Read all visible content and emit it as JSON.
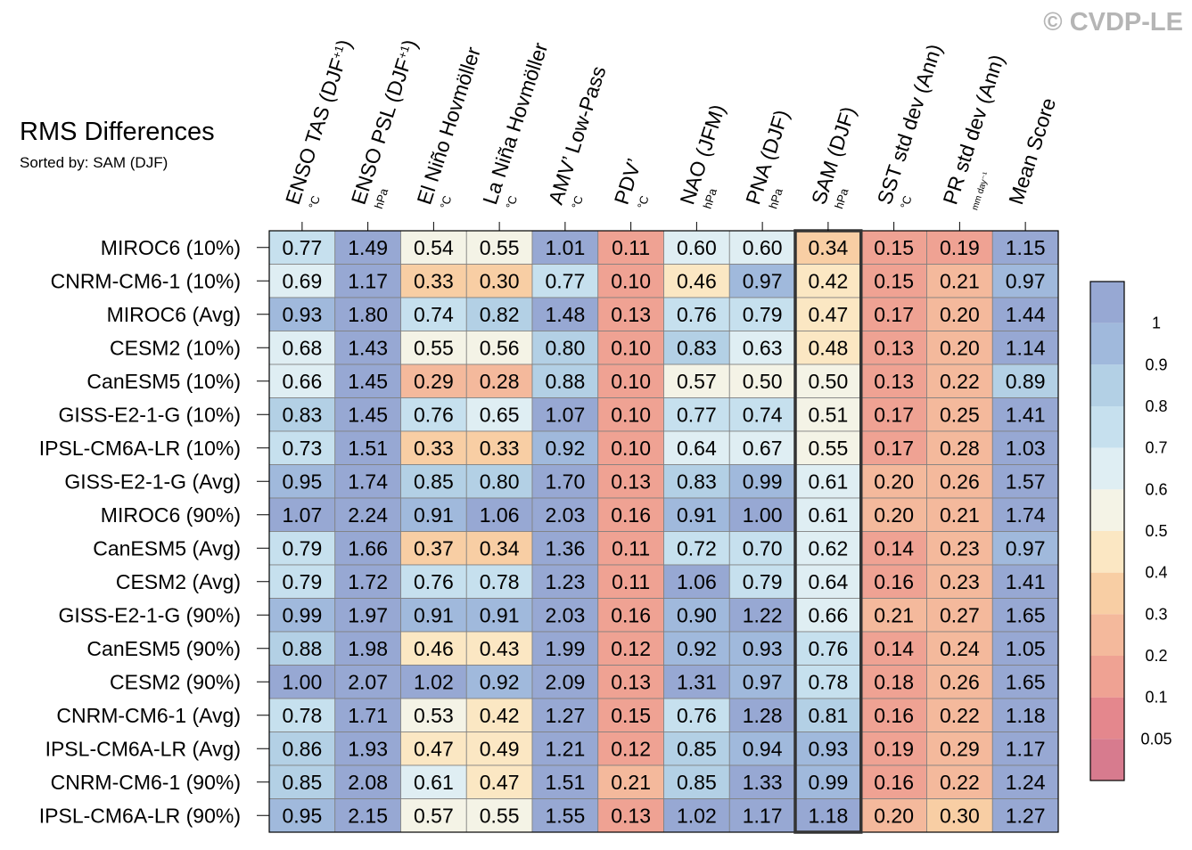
{
  "watermark": "© CVDP-LE",
  "chart_data": {
    "type": "heatmap",
    "title": "RMS Differences",
    "subtitle": "Sorted by: SAM (DJF)",
    "sorted_column": "SAM (DJF)",
    "columns": [
      {
        "name": "ENSO TAS (DJF",
        "sup": "+1",
        "close": ")",
        "unit": "°C"
      },
      {
        "name": "ENSO PSL (DJF",
        "sup": "+1",
        "close": ")",
        "unit": "hPa"
      },
      {
        "name": "El Niño Hovmöller",
        "sup": "",
        "close": "",
        "unit": "°C"
      },
      {
        "name": "La Niña Hovmöller",
        "sup": "",
        "close": "",
        "unit": "°C"
      },
      {
        "name": "AMV’ Low-Pass",
        "sup": "",
        "close": "",
        "unit": "°C"
      },
      {
        "name": "PDV’",
        "sup": "",
        "close": "",
        "unit": "°C"
      },
      {
        "name": "NAO (JFM)",
        "sup": "",
        "close": "",
        "unit": "hPa"
      },
      {
        "name": "PNA (DJF)",
        "sup": "",
        "close": "",
        "unit": "hPa"
      },
      {
        "name": "SAM (DJF)",
        "sup": "",
        "close": "",
        "unit": "hPa"
      },
      {
        "name": "SST std dev (Ann)",
        "sup": "",
        "close": "",
        "unit": "°C"
      },
      {
        "name": "PR std dev (Ann)",
        "sup": "",
        "close": "",
        "unit": "mm day⁻¹"
      },
      {
        "name": "Mean Score",
        "sup": "",
        "close": "",
        "unit": ""
      }
    ],
    "rows": [
      "MIROC6 (10%)",
      "CNRM-CM6-1 (10%)",
      "MIROC6 (Avg)",
      "CESM2 (10%)",
      "CanESM5 (10%)",
      "GISS-E2-1-G (10%)",
      "IPSL-CM6A-LR (10%)",
      "GISS-E2-1-G (Avg)",
      "MIROC6 (90%)",
      "CanESM5 (Avg)",
      "CESM2 (Avg)",
      "GISS-E2-1-G (90%)",
      "CanESM5 (90%)",
      "CESM2 (90%)",
      "CNRM-CM6-1 (Avg)",
      "IPSL-CM6A-LR (Avg)",
      "CNRM-CM6-1 (90%)",
      "IPSL-CM6A-LR (90%)"
    ],
    "values": [
      [
        "0.77",
        "1.49",
        "0.54",
        "0.55",
        "1.01",
        "0.11",
        "0.60",
        "0.60",
        "0.34",
        "0.15",
        "0.19",
        "1.15"
      ],
      [
        "0.69",
        "1.17",
        "0.33",
        "0.30",
        "0.77",
        "0.10",
        "0.46",
        "0.97",
        "0.42",
        "0.15",
        "0.21",
        "0.97"
      ],
      [
        "0.93",
        "1.80",
        "0.74",
        "0.82",
        "1.48",
        "0.13",
        "0.76",
        "0.79",
        "0.47",
        "0.17",
        "0.20",
        "1.44"
      ],
      [
        "0.68",
        "1.43",
        "0.55",
        "0.56",
        "0.80",
        "0.10",
        "0.83",
        "0.63",
        "0.48",
        "0.13",
        "0.20",
        "1.14"
      ],
      [
        "0.66",
        "1.45",
        "0.29",
        "0.28",
        "0.88",
        "0.10",
        "0.57",
        "0.50",
        "0.50",
        "0.13",
        "0.22",
        "0.89"
      ],
      [
        "0.83",
        "1.45",
        "0.76",
        "0.65",
        "1.07",
        "0.10",
        "0.77",
        "0.74",
        "0.51",
        "0.17",
        "0.25",
        "1.41"
      ],
      [
        "0.73",
        "1.51",
        "0.33",
        "0.33",
        "0.92",
        "0.10",
        "0.64",
        "0.67",
        "0.55",
        "0.17",
        "0.28",
        "1.03"
      ],
      [
        "0.95",
        "1.74",
        "0.85",
        "0.80",
        "1.70",
        "0.13",
        "0.83",
        "0.99",
        "0.61",
        "0.20",
        "0.26",
        "1.57"
      ],
      [
        "1.07",
        "2.24",
        "0.91",
        "1.06",
        "2.03",
        "0.16",
        "0.91",
        "1.00",
        "0.61",
        "0.20",
        "0.21",
        "1.74"
      ],
      [
        "0.79",
        "1.66",
        "0.37",
        "0.34",
        "1.36",
        "0.11",
        "0.72",
        "0.70",
        "0.62",
        "0.14",
        "0.23",
        "0.97"
      ],
      [
        "0.79",
        "1.72",
        "0.76",
        "0.78",
        "1.23",
        "0.11",
        "1.06",
        "0.79",
        "0.64",
        "0.16",
        "0.23",
        "1.41"
      ],
      [
        "0.99",
        "1.97",
        "0.91",
        "0.91",
        "2.03",
        "0.16",
        "0.90",
        "1.22",
        "0.66",
        "0.21",
        "0.27",
        "1.65"
      ],
      [
        "0.88",
        "1.98",
        "0.46",
        "0.43",
        "1.99",
        "0.12",
        "0.92",
        "0.93",
        "0.76",
        "0.14",
        "0.24",
        "1.05"
      ],
      [
        "1.00",
        "2.07",
        "1.02",
        "0.92",
        "2.09",
        "0.13",
        "1.31",
        "0.97",
        "0.78",
        "0.18",
        "0.26",
        "1.65"
      ],
      [
        "0.78",
        "1.71",
        "0.53",
        "0.42",
        "1.27",
        "0.15",
        "0.76",
        "1.28",
        "0.81",
        "0.16",
        "0.22",
        "1.18"
      ],
      [
        "0.86",
        "1.93",
        "0.47",
        "0.49",
        "1.21",
        "0.12",
        "0.85",
        "0.94",
        "0.93",
        "0.19",
        "0.29",
        "1.17"
      ],
      [
        "0.85",
        "2.08",
        "0.61",
        "0.47",
        "1.51",
        "0.21",
        "0.85",
        "1.33",
        "0.99",
        "0.16",
        "0.22",
        "1.24"
      ],
      [
        "0.95",
        "2.15",
        "0.57",
        "0.55",
        "1.55",
        "0.13",
        "1.02",
        "1.17",
        "1.18",
        "0.20",
        "0.30",
        "1.27"
      ]
    ],
    "colorbar": {
      "labels": [
        "1",
        "0.9",
        "0.8",
        "0.7",
        "0.6",
        "0.5",
        "0.4",
        "0.3",
        "0.2",
        "0.1",
        "0.05"
      ],
      "thresholds": [
        0.05,
        0.1,
        0.2,
        0.3,
        0.4,
        0.5,
        0.6,
        0.7,
        0.8,
        0.9,
        1.0
      ],
      "colors_low_to_high": [
        "#d77b8e",
        "#e4878d",
        "#efa293",
        "#f4b99c",
        "#f8cea4",
        "#fbe7c3",
        "#f4f3e6",
        "#dfeef3",
        "#c6e0ee",
        "#b3d0e5",
        "#a0b9dc",
        "#97a8d3"
      ]
    }
  }
}
